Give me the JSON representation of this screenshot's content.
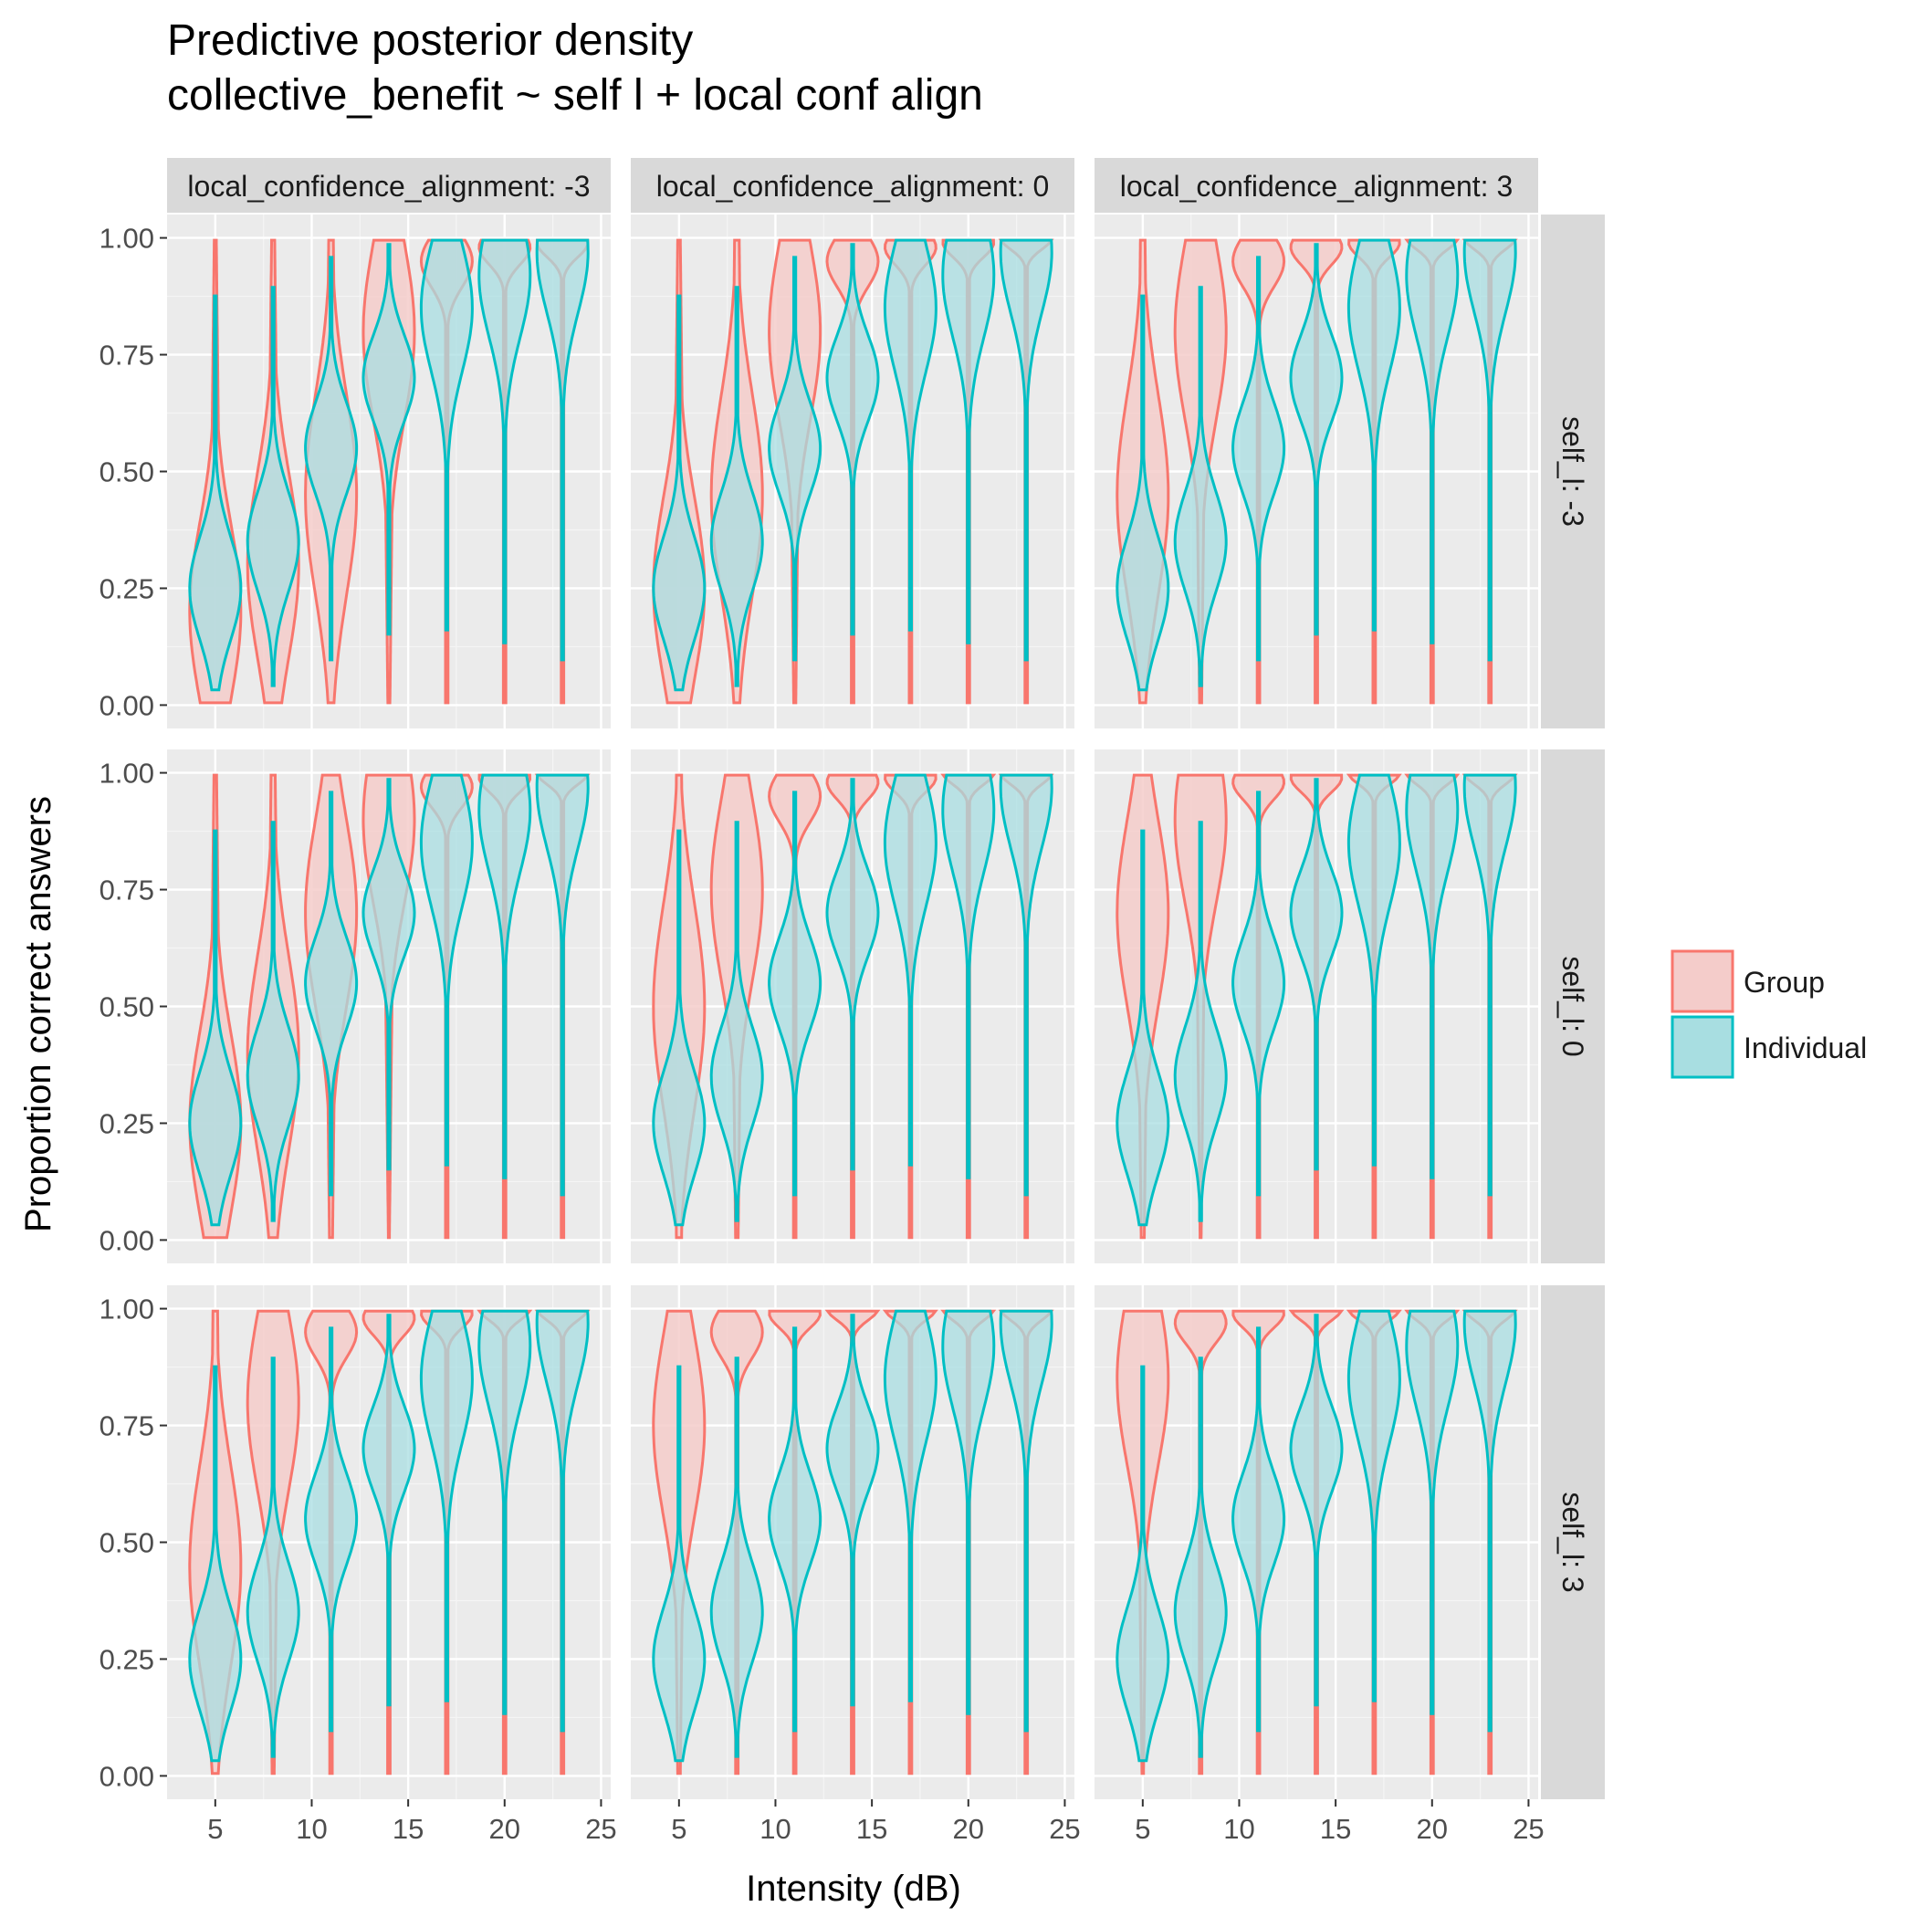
{
  "chart_data": {
    "type": "violin",
    "title": "Predictive posterior density",
    "subtitle": "collective_benefit ~ self l + local conf align",
    "xlabel": "Intensity (dB)",
    "ylabel": "Proportion correct answers",
    "xlim": [
      2.5,
      25.5
    ],
    "ylim": [
      -0.05,
      1.05
    ],
    "x_ticks": [
      5,
      10,
      15,
      20,
      25
    ],
    "x_tick_labels": [
      "5",
      "10",
      "15",
      "20",
      "25"
    ],
    "y_ticks": [
      0,
      0.25,
      0.5,
      0.75,
      1
    ],
    "y_tick_labels": [
      "0.00",
      "0.25",
      "0.50",
      "0.75",
      "1.00"
    ],
    "grid": true,
    "legend_position": "right",
    "legend": [
      {
        "label": "Group",
        "color": "#F8766D",
        "fill": "#F4CCCA"
      },
      {
        "label": "Individual",
        "color": "#00BFC4",
        "fill": "#A8DEE1"
      }
    ],
    "col_strips": [
      "local_confidence_alignment: -3",
      "local_confidence_alignment: 0",
      "local_confidence_alignment: 3"
    ],
    "row_strips": [
      "self_l: -3",
      "self_l: 0",
      "self_l: 3"
    ],
    "intensities": [
      5,
      8,
      11,
      14,
      17,
      20,
      23
    ],
    "individual_curve": {
      "description": "Individual violin distribution by intensity (same in all panels): range and approximate mode of proportion correct",
      "min": [
        0.03,
        0.04,
        0.09,
        0.15,
        0.16,
        0.13,
        0.09
      ],
      "max": [
        0.88,
        0.9,
        0.96,
        0.99,
        1.0,
        1.0,
        1.0
      ],
      "mode": [
        0.25,
        0.35,
        0.55,
        0.7,
        0.85,
        0.92,
        0.97
      ]
    },
    "group_mode_by_panel": [
      [
        [
          0.2,
          0.3,
          0.45,
          0.8,
          0.95,
          0.98,
          0.99
        ],
        [
          0.25,
          0.45,
          0.8,
          0.95,
          0.98,
          0.99,
          1.0
        ],
        [
          0.45,
          0.8,
          0.95,
          0.98,
          0.99,
          1.0,
          1.0
        ]
      ],
      [
        [
          0.25,
          0.4,
          0.7,
          0.9,
          0.97,
          0.99,
          1.0
        ],
        [
          0.5,
          0.75,
          0.95,
          0.98,
          0.99,
          1.0,
          1.0
        ],
        [
          0.7,
          0.9,
          0.98,
          0.99,
          1.0,
          1.0,
          1.0
        ]
      ],
      [
        [
          0.45,
          0.8,
          0.95,
          0.98,
          0.99,
          1.0,
          1.0
        ],
        [
          0.75,
          0.95,
          0.99,
          1.0,
          1.0,
          1.0,
          1.0
        ],
        [
          0.85,
          0.97,
          0.99,
          1.0,
          1.0,
          1.0,
          1.0
        ]
      ]
    ]
  }
}
